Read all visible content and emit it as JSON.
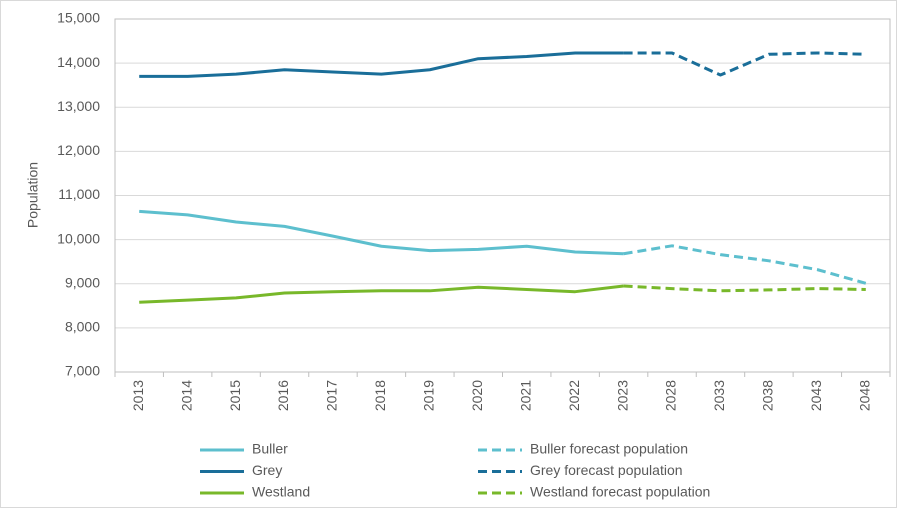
{
  "chart_data": {
    "type": "line",
    "y_label": "Population",
    "categories": [
      "2013",
      "2014",
      "2015",
      "2016",
      "2017",
      "2018",
      "2019",
      "2020",
      "2021",
      "2022",
      "2023",
      "2028",
      "2033",
      "2038",
      "2043",
      "2048"
    ],
    "series": [
      {
        "name": "Buller",
        "color": "#5dbfce",
        "dashed": false,
        "values": [
          10640,
          10560,
          10400,
          10300,
          10080,
          9850,
          9750,
          9780,
          9850,
          9720,
          9680,
          null,
          null,
          null,
          null,
          null
        ]
      },
      {
        "name": "Buller forecast population",
        "color": "#5dbfce",
        "dashed": true,
        "values": [
          null,
          null,
          null,
          null,
          null,
          null,
          null,
          null,
          null,
          null,
          9680,
          9860,
          9660,
          9520,
          9320,
          9010
        ]
      },
      {
        "name": "Grey",
        "color": "#1a6e99",
        "dashed": false,
        "values": [
          13700,
          13700,
          13750,
          13850,
          13800,
          13750,
          13850,
          14100,
          14150,
          14230,
          14230,
          null,
          null,
          null,
          null,
          null
        ]
      },
      {
        "name": "Grey forecast population",
        "color": "#1a6e99",
        "dashed": true,
        "values": [
          null,
          null,
          null,
          null,
          null,
          null,
          null,
          null,
          null,
          null,
          14230,
          14230,
          13730,
          14200,
          14230,
          14200
        ]
      },
      {
        "name": "Westland",
        "color": "#78b82a",
        "dashed": false,
        "values": [
          8580,
          8630,
          8680,
          8790,
          8820,
          8840,
          8840,
          8920,
          8870,
          8820,
          8950,
          null,
          null,
          null,
          null,
          null
        ]
      },
      {
        "name": "Westland forecast population",
        "color": "#78b82a",
        "dashed": true,
        "values": [
          null,
          null,
          null,
          null,
          null,
          null,
          null,
          null,
          null,
          null,
          8950,
          8890,
          8840,
          8860,
          8890,
          8870
        ]
      }
    ],
    "ylim": [
      7000,
      15000
    ],
    "yticks": [
      {
        "value": 7000,
        "label": "7,000"
      },
      {
        "value": 8000,
        "label": "8,000"
      },
      {
        "value": 9000,
        "label": "9,000"
      },
      {
        "value": 10000,
        "label": "10,000"
      },
      {
        "value": 11000,
        "label": "11,000"
      },
      {
        "value": 12000,
        "label": "12,000"
      },
      {
        "value": 13000,
        "label": "13,000"
      },
      {
        "value": 14000,
        "label": "14,000"
      },
      {
        "value": 15000,
        "label": "15,000"
      }
    ],
    "grid": true
  }
}
